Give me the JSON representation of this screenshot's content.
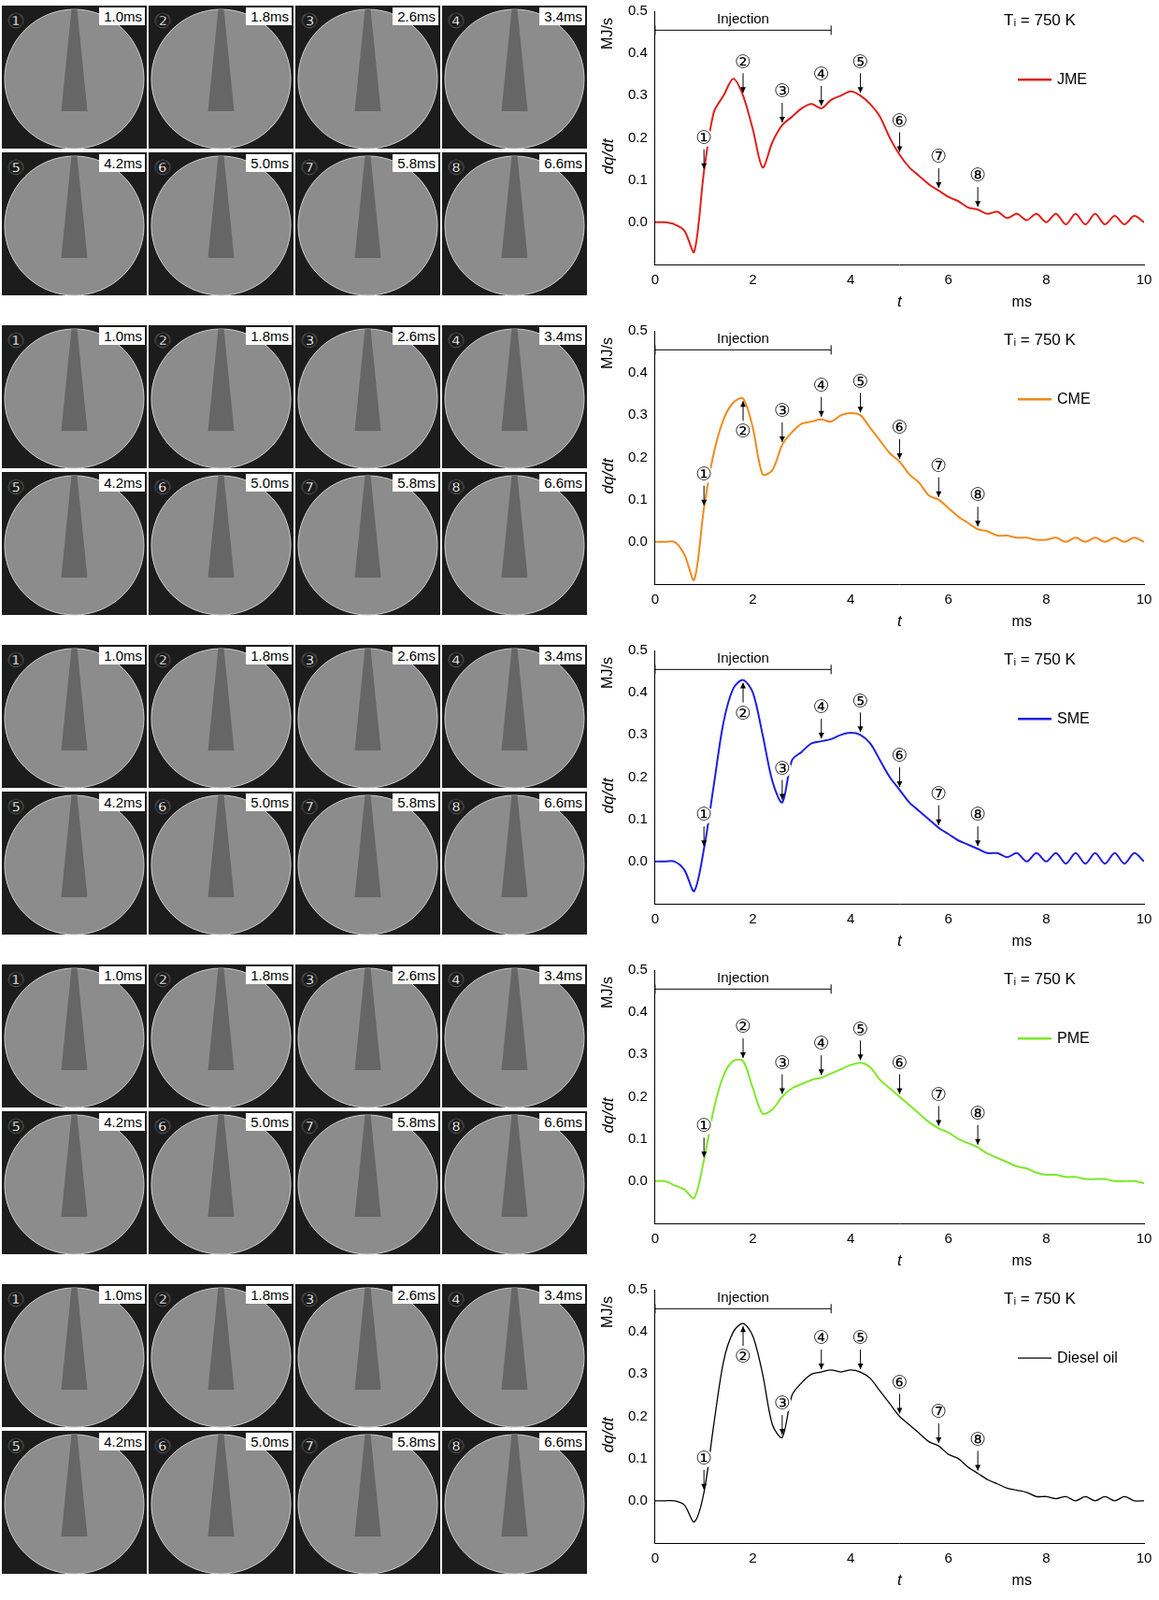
{
  "chart_data": [
    {
      "type": "line",
      "title": "Tᵢ = 750 K",
      "x_label": "t",
      "x_unit": "ms",
      "y_label": "dq/dt",
      "y_unit": "MJ/s",
      "xlim": [
        0,
        10
      ],
      "xticks": [
        0,
        2,
        4,
        6,
        8,
        10
      ],
      "ylim": [
        -0.1,
        0.5
      ],
      "yticks": [
        {
          "value": 0,
          "label": "0.0"
        },
        0.1,
        0.2,
        0.3,
        0.4,
        0.5
      ],
      "grid": false,
      "legend": "upper right",
      "x": [
        0,
        0.2,
        0.4,
        0.6,
        0.8,
        1.0,
        1.2,
        1.4,
        1.6,
        1.8,
        2.0,
        2.2,
        2.4,
        2.6,
        2.8,
        3.0,
        3.2,
        3.4,
        3.6,
        3.8,
        4.0,
        4.2,
        4.4,
        4.6,
        4.8,
        5.0,
        5.2,
        5.4,
        5.6,
        5.8,
        6.0,
        6.2,
        6.4,
        6.6,
        6.8,
        7.0,
        7.2,
        7.4,
        7.6,
        7.8,
        8.0,
        8.2,
        8.4,
        8.6,
        8.8,
        9.0,
        9.2,
        9.4,
        9.6,
        9.8,
        10
      ],
      "series": [
        {
          "name": "JME",
          "color": "#e0201b",
          "values": [
            0,
            0,
            -0.005,
            -0.02,
            -0.07,
            0.12,
            0.26,
            0.3,
            0.34,
            0.3,
            0.22,
            0.13,
            0.19,
            0.23,
            0.25,
            0.27,
            0.28,
            0.27,
            0.29,
            0.3,
            0.31,
            0.3,
            0.28,
            0.25,
            0.2,
            0.16,
            0.13,
            0.11,
            0.09,
            0.075,
            0.06,
            0.05,
            0.035,
            0.03,
            0.02,
            0.025,
            0.01,
            0.02,
            0.005,
            0.02,
            0.0,
            0.02,
            -0.005,
            0.02,
            -0.005,
            0.02,
            -0.005,
            0.015,
            -0.005,
            0.015,
            0.0
          ]
        }
      ],
      "injection": {
        "text": "Injection",
        "x": [
          0,
          3.6
        ],
        "y": 0.455
      },
      "annotations": [
        {
          "label": "①",
          "x": 1.0
        },
        {
          "label": "②",
          "x": 1.8
        },
        {
          "label": "③",
          "x": 2.6
        },
        {
          "label": "④",
          "x": 3.4
        },
        {
          "label": "⑤",
          "x": 4.2
        },
        {
          "label": "⑥",
          "x": 5.0
        },
        {
          "label": "⑦",
          "x": 5.8
        },
        {
          "label": "⑧",
          "x": 6.6
        }
      ],
      "frames": [
        {
          "label": "①",
          "time": "1.0ms"
        },
        {
          "label": "②",
          "time": "1.8ms"
        },
        {
          "label": "③",
          "time": "2.6ms"
        },
        {
          "label": "④",
          "time": "3.4ms"
        },
        {
          "label": "⑤",
          "time": "4.2ms"
        },
        {
          "label": "⑥",
          "time": "5.0ms"
        },
        {
          "label": "⑦",
          "time": "5.8ms"
        },
        {
          "label": "⑧",
          "time": "6.6ms"
        }
      ]
    },
    {
      "type": "line",
      "title": "Tᵢ = 750 K",
      "x_label": "t",
      "x_unit": "ms",
      "y_label": "dq/dt",
      "y_unit": "MJ/s",
      "xlim": [
        0,
        10
      ],
      "xticks": [
        0,
        2,
        4,
        6,
        8,
        10
      ],
      "ylim": [
        -0.1,
        0.5
      ],
      "yticks": [
        {
          "value": 0,
          "label": "0.0"
        },
        0.1,
        0.2,
        0.3,
        0.4,
        0.5
      ],
      "grid": false,
      "legend": "upper right",
      "x": [
        0,
        0.2,
        0.4,
        0.6,
        0.8,
        1.0,
        1.2,
        1.4,
        1.6,
        1.8,
        2.0,
        2.2,
        2.4,
        2.6,
        2.8,
        3.0,
        3.2,
        3.4,
        3.6,
        3.8,
        4.0,
        4.2,
        4.4,
        4.6,
        4.8,
        5.0,
        5.2,
        5.4,
        5.6,
        5.8,
        6.0,
        6.2,
        6.4,
        6.6,
        6.8,
        7.0,
        7.2,
        7.4,
        7.6,
        7.8,
        8.0,
        8.2,
        8.4,
        8.6,
        8.8,
        9.0,
        9.2,
        9.4,
        9.6,
        9.8,
        10
      ],
      "series": [
        {
          "name": "CME",
          "color": "#f08a1c",
          "values": [
            0,
            0,
            0,
            -0.03,
            -0.09,
            0.08,
            0.21,
            0.29,
            0.33,
            0.34,
            0.27,
            0.16,
            0.17,
            0.23,
            0.26,
            0.28,
            0.285,
            0.29,
            0.285,
            0.3,
            0.305,
            0.3,
            0.27,
            0.24,
            0.21,
            0.19,
            0.16,
            0.14,
            0.11,
            0.1,
            0.08,
            0.06,
            0.045,
            0.03,
            0.025,
            0.015,
            0.015,
            0.01,
            0.01,
            0.005,
            0.005,
            0.01,
            0.0,
            0.01,
            0.0,
            0.01,
            0.0,
            0.01,
            0.0,
            0.01,
            0.0
          ]
        }
      ],
      "injection": {
        "text": "Injection",
        "x": [
          0,
          3.6
        ],
        "y": 0.455
      },
      "annotations": [
        {
          "label": "①",
          "x": 1.0
        },
        {
          "label": "②",
          "x": 1.8
        },
        {
          "label": "③",
          "x": 2.6
        },
        {
          "label": "④",
          "x": 3.4
        },
        {
          "label": "⑤",
          "x": 4.2
        },
        {
          "label": "⑥",
          "x": 5.0
        },
        {
          "label": "⑦",
          "x": 5.8
        },
        {
          "label": "⑧",
          "x": 6.6
        }
      ],
      "frames": [
        {
          "label": "①",
          "time": "1.0ms"
        },
        {
          "label": "②",
          "time": "1.8ms"
        },
        {
          "label": "③",
          "time": "2.6ms"
        },
        {
          "label": "④",
          "time": "3.4ms"
        },
        {
          "label": "⑤",
          "time": "4.2ms"
        },
        {
          "label": "⑥",
          "time": "5.0ms"
        },
        {
          "label": "⑦",
          "time": "5.8ms"
        },
        {
          "label": "⑧",
          "time": "6.6ms"
        }
      ]
    },
    {
      "type": "line",
      "title": "Tᵢ = 750 K",
      "x_label": "t",
      "x_unit": "ms",
      "y_label": "dq/dt",
      "y_unit": "MJ/s",
      "xlim": [
        0,
        10
      ],
      "xticks": [
        0,
        2,
        4,
        6,
        8,
        10
      ],
      "ylim": [
        -0.1,
        0.5
      ],
      "yticks": [
        {
          "value": 0,
          "label": "0.0"
        },
        0.1,
        0.2,
        0.3,
        0.4,
        0.5
      ],
      "grid": false,
      "legend": "upper right",
      "x": [
        0,
        0.2,
        0.4,
        0.6,
        0.8,
        1.0,
        1.2,
        1.4,
        1.6,
        1.8,
        2.0,
        2.2,
        2.4,
        2.6,
        2.8,
        3.0,
        3.2,
        3.4,
        3.6,
        3.8,
        4.0,
        4.2,
        4.4,
        4.6,
        4.8,
        5.0,
        5.2,
        5.4,
        5.6,
        5.8,
        6.0,
        6.2,
        6.4,
        6.6,
        6.8,
        7.0,
        7.2,
        7.4,
        7.6,
        7.8,
        8.0,
        8.2,
        8.4,
        8.6,
        8.8,
        9.0,
        9.2,
        9.4,
        9.6,
        9.8,
        10
      ],
      "series": [
        {
          "name": "SME",
          "color": "#1e1ee0",
          "values": [
            0,
            0,
            0,
            -0.02,
            -0.07,
            0.03,
            0.18,
            0.33,
            0.41,
            0.43,
            0.4,
            0.3,
            0.19,
            0.14,
            0.24,
            0.26,
            0.28,
            0.285,
            0.29,
            0.3,
            0.305,
            0.3,
            0.28,
            0.24,
            0.2,
            0.17,
            0.14,
            0.12,
            0.1,
            0.08,
            0.065,
            0.05,
            0.04,
            0.03,
            0.02,
            0.02,
            0.01,
            0.02,
            0.0,
            0.02,
            0.0,
            0.02,
            -0.005,
            0.02,
            -0.005,
            0.02,
            -0.005,
            0.02,
            -0.005,
            0.02,
            0.0
          ]
        }
      ],
      "injection": {
        "text": "Injection",
        "x": [
          0,
          3.6
        ],
        "y": 0.455
      },
      "annotations": [
        {
          "label": "①",
          "x": 1.0
        },
        {
          "label": "②",
          "x": 1.8
        },
        {
          "label": "③",
          "x": 2.6
        },
        {
          "label": "④",
          "x": 3.4
        },
        {
          "label": "⑤",
          "x": 4.2
        },
        {
          "label": "⑥",
          "x": 5.0
        },
        {
          "label": "⑦",
          "x": 5.8
        },
        {
          "label": "⑧",
          "x": 6.6
        }
      ],
      "frames": [
        {
          "label": "①",
          "time": "1.0ms"
        },
        {
          "label": "②",
          "time": "1.8ms"
        },
        {
          "label": "③",
          "time": "2.6ms"
        },
        {
          "label": "④",
          "time": "3.4ms"
        },
        {
          "label": "⑤",
          "time": "4.2ms"
        },
        {
          "label": "⑥",
          "time": "5.0ms"
        },
        {
          "label": "⑦",
          "time": "5.8ms"
        },
        {
          "label": "⑧",
          "time": "6.6ms"
        }
      ]
    },
    {
      "type": "line",
      "title": "Tᵢ = 750 K",
      "x_label": "t",
      "x_unit": "ms",
      "y_label": "dq/dt",
      "y_unit": "MJ/s",
      "xlim": [
        0,
        10
      ],
      "xticks": [
        0,
        2,
        4,
        6,
        8,
        10
      ],
      "ylim": [
        -0.1,
        0.5
      ],
      "yticks": [
        {
          "value": 0,
          "label": "0.0"
        },
        0.1,
        0.2,
        0.3,
        0.4,
        0.5
      ],
      "grid": false,
      "legend": "upper right",
      "x": [
        0,
        0.2,
        0.4,
        0.6,
        0.8,
        1.0,
        1.2,
        1.4,
        1.6,
        1.8,
        2.0,
        2.2,
        2.4,
        2.6,
        2.8,
        3.0,
        3.2,
        3.4,
        3.6,
        3.8,
        4.0,
        4.2,
        4.4,
        4.6,
        4.8,
        5.0,
        5.2,
        5.4,
        5.6,
        5.8,
        6.0,
        6.2,
        6.4,
        6.6,
        6.8,
        7.0,
        7.2,
        7.4,
        7.6,
        7.8,
        8.0,
        8.2,
        8.4,
        8.6,
        8.8,
        9.0,
        9.2,
        9.4,
        9.6,
        9.8,
        10
      ],
      "series": [
        {
          "name": "PME",
          "color": "#7ee82a",
          "values": [
            0,
            0,
            -0.01,
            -0.02,
            -0.04,
            0.05,
            0.17,
            0.25,
            0.285,
            0.285,
            0.22,
            0.16,
            0.17,
            0.2,
            0.22,
            0.23,
            0.24,
            0.245,
            0.255,
            0.265,
            0.275,
            0.28,
            0.27,
            0.24,
            0.22,
            0.2,
            0.18,
            0.16,
            0.14,
            0.125,
            0.115,
            0.1,
            0.09,
            0.08,
            0.065,
            0.055,
            0.045,
            0.035,
            0.03,
            0.02,
            0.015,
            0.015,
            0.01,
            0.01,
            0.005,
            0.005,
            0.005,
            0.0,
            0.0,
            0.0,
            -0.005
          ]
        }
      ],
      "injection": {
        "text": "Injection",
        "x": [
          0,
          3.6
        ],
        "y": 0.455
      },
      "annotations": [
        {
          "label": "①",
          "x": 1.0
        },
        {
          "label": "②",
          "x": 1.8
        },
        {
          "label": "③",
          "x": 2.6
        },
        {
          "label": "④",
          "x": 3.4
        },
        {
          "label": "⑤",
          "x": 4.2
        },
        {
          "label": "⑥",
          "x": 5.0
        },
        {
          "label": "⑦",
          "x": 5.8
        },
        {
          "label": "⑧",
          "x": 6.6
        }
      ],
      "frames": [
        {
          "label": "①",
          "time": "1.0ms"
        },
        {
          "label": "②",
          "time": "1.8ms"
        },
        {
          "label": "③",
          "time": "2.6ms"
        },
        {
          "label": "④",
          "time": "3.4ms"
        },
        {
          "label": "⑤",
          "time": "4.2ms"
        },
        {
          "label": "⑥",
          "time": "5.0ms"
        },
        {
          "label": "⑦",
          "time": "5.8ms"
        },
        {
          "label": "⑧",
          "time": "6.6ms"
        }
      ]
    },
    {
      "type": "line",
      "title": "Tᵢ = 750 K",
      "x_label": "t",
      "x_unit": "ms",
      "y_label": "dq/dt",
      "y_unit": "MJ/s",
      "xlim": [
        0,
        10
      ],
      "xticks": [
        0,
        2,
        4,
        6,
        8,
        10
      ],
      "ylim": [
        -0.1,
        0.5
      ],
      "yticks": [
        {
          "value": 0,
          "label": "0.0"
        },
        0.1,
        0.2,
        0.3,
        0.4,
        0.5
      ],
      "grid": false,
      "legend": "upper right",
      "x": [
        0,
        0.2,
        0.4,
        0.6,
        0.8,
        1.0,
        1.2,
        1.4,
        1.6,
        1.8,
        2.0,
        2.2,
        2.4,
        2.6,
        2.8,
        3.0,
        3.2,
        3.4,
        3.6,
        3.8,
        4.0,
        4.2,
        4.4,
        4.6,
        4.8,
        5.0,
        5.2,
        5.4,
        5.6,
        5.8,
        6.0,
        6.2,
        6.4,
        6.6,
        6.8,
        7.0,
        7.2,
        7.4,
        7.6,
        7.8,
        8.0,
        8.2,
        8.4,
        8.6,
        8.8,
        9.0,
        9.2,
        9.4,
        9.6,
        9.8,
        10
      ],
      "series": [
        {
          "name": "Diesel oil",
          "color": "#000000",
          "values": [
            0,
            0,
            0,
            -0.01,
            -0.05,
            0.02,
            0.18,
            0.33,
            0.4,
            0.42,
            0.39,
            0.3,
            0.18,
            0.15,
            0.25,
            0.28,
            0.3,
            0.305,
            0.31,
            0.305,
            0.31,
            0.305,
            0.29,
            0.26,
            0.23,
            0.2,
            0.18,
            0.16,
            0.14,
            0.13,
            0.11,
            0.1,
            0.08,
            0.065,
            0.05,
            0.04,
            0.03,
            0.025,
            0.02,
            0.01,
            0.01,
            0.005,
            0.01,
            0.0,
            0.01,
            0.0,
            0.01,
            0.0,
            0.01,
            0.0,
            0.0
          ]
        }
      ],
      "injection": {
        "text": "Injection",
        "x": [
          0,
          3.6
        ],
        "y": 0.455
      },
      "annotations": [
        {
          "label": "①",
          "x": 1.0
        },
        {
          "label": "②",
          "x": 1.8
        },
        {
          "label": "③",
          "x": 2.6
        },
        {
          "label": "④",
          "x": 3.4
        },
        {
          "label": "⑤",
          "x": 4.2
        },
        {
          "label": "⑥",
          "x": 5.0
        },
        {
          "label": "⑦",
          "x": 5.8
        },
        {
          "label": "⑧",
          "x": 6.6
        }
      ],
      "frames": [
        {
          "label": "①",
          "time": "1.0ms"
        },
        {
          "label": "②",
          "time": "1.8ms"
        },
        {
          "label": "③",
          "time": "2.6ms"
        },
        {
          "label": "④",
          "time": "3.4ms"
        },
        {
          "label": "⑤",
          "time": "4.2ms"
        },
        {
          "label": "⑥",
          "time": "5.0ms"
        },
        {
          "label": "⑦",
          "time": "5.8ms"
        },
        {
          "label": "⑧",
          "time": "6.6ms"
        }
      ]
    }
  ]
}
